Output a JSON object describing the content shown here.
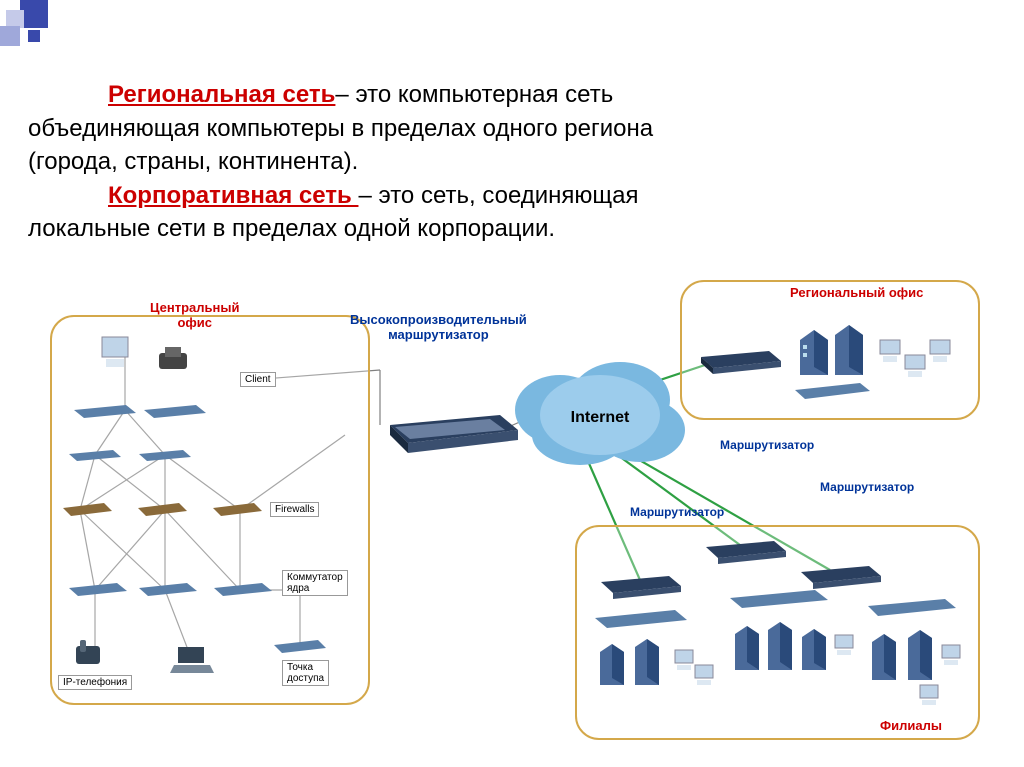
{
  "style": {
    "page_bg": "#ffffff",
    "term_color": "#cc0000",
    "text_color": "#000000",
    "corner_colors": [
      "#9fa8da",
      "#3949ab",
      "#c5cae9"
    ],
    "region_border_central": "#d4a84a",
    "region_border_regional": "#d4a84a",
    "region_border_branch": "#d4a84a",
    "title_central_color": "#cc0000",
    "title_regional_color": "#cc0000",
    "title_branch_color": "#cc0000",
    "label_router_color": "#003399",
    "label_hp_router_color": "#003399",
    "cloud_fill": "#7ab8e0",
    "cloud_text_color": "#000000",
    "router_body": "#2a3f5f",
    "router_trim": "#6a7fa0",
    "switch_body": "#5a7fa8",
    "building_body": "#4a6a9a",
    "building_dark": "#2a4a7a",
    "pc_monitor": "#bfd4e8",
    "pc_base": "#dde8f2",
    "line_color": "#808080",
    "green_line": "#2ea043"
  },
  "text": {
    "term1": "Региональная сеть",
    "def1_a": "– это компьютерная сеть",
    "def1_b": "объединяющая  компьютеры в пределах одного региона",
    "def1_c": "(города, страны, континента).",
    "term2": "Корпоративная сеть ",
    "def2_a": "– это сеть, соединяющая",
    "def2_b": "локальные сети в пределах одной корпорации."
  },
  "diagram": {
    "central_office": {
      "title": "Центральный\nофис",
      "labels": {
        "client": "Client",
        "firewalls": "Firewalls",
        "core_switch": "Коммутатор\nядра",
        "access_point": "Точка\nдоступа",
        "ip_telephony": "IP-телефония"
      }
    },
    "regional_office": {
      "title": "Региональный офис"
    },
    "branches": {
      "title": "Филиалы"
    },
    "center": {
      "hp_router": "Высокопроизводительный\nмаршрутизатор",
      "internet": "Internet",
      "router1": "Маршрутизатор",
      "router2": "Маршрутизатор",
      "router3": "Маршрутизатор"
    },
    "connections": {
      "gray_edges": [
        [
          85,
          75,
          85,
          130
        ],
        [
          85,
          130,
          55,
          175
        ],
        [
          85,
          130,
          125,
          175
        ],
        [
          55,
          175,
          40,
          230
        ],
        [
          55,
          175,
          125,
          230
        ],
        [
          125,
          175,
          40,
          230
        ],
        [
          125,
          175,
          125,
          230
        ],
        [
          125,
          175,
          200,
          230
        ],
        [
          40,
          230,
          55,
          310
        ],
        [
          40,
          230,
          125,
          310
        ],
        [
          125,
          230,
          55,
          310
        ],
        [
          125,
          230,
          125,
          310
        ],
        [
          125,
          230,
          200,
          310
        ],
        [
          200,
          230,
          200,
          310
        ],
        [
          200,
          310,
          260,
          310
        ],
        [
          260,
          310,
          260,
          370
        ],
        [
          55,
          310,
          55,
          375
        ],
        [
          125,
          310,
          150,
          375
        ],
        [
          200,
          230,
          305,
          155
        ],
        [
          450,
          155,
          530,
          120
        ],
        [
          530,
          140,
          620,
          145
        ],
        [
          340,
          145,
          340,
          90
        ],
        [
          210,
          100,
          340,
          90
        ]
      ],
      "green_edges": [
        [
          530,
          130,
          680,
          80
        ],
        [
          530,
          140,
          700,
          265
        ],
        [
          530,
          140,
          600,
          300
        ],
        [
          530,
          140,
          790,
          290
        ]
      ]
    }
  }
}
